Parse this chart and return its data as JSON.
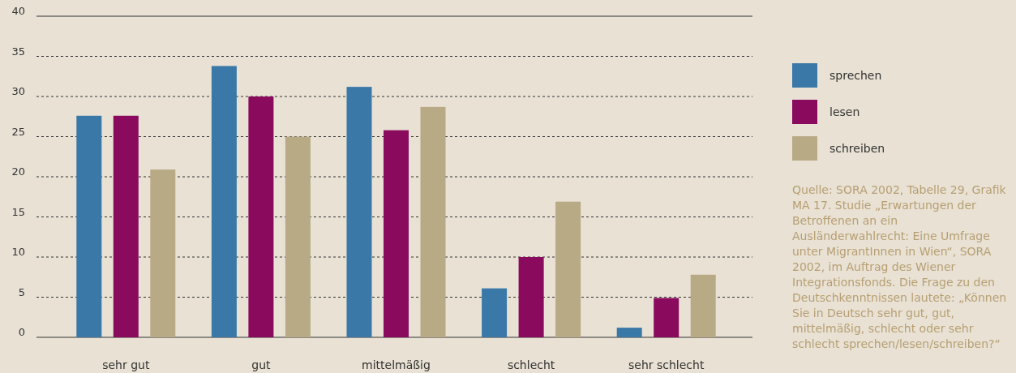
{
  "chart_data": {
    "type": "bar",
    "categories": [
      "sehr gut",
      "gut",
      "mittelmäßig",
      "schlecht",
      "sehr schlecht"
    ],
    "series": [
      {
        "name": "sprechen",
        "color": "#3a78a8",
        "values": [
          27.6,
          33.8,
          31.2,
          6.1,
          1.2
        ]
      },
      {
        "name": "lesen",
        "color": "#8a0a5e",
        "values": [
          27.6,
          30.0,
          25.8,
          10.0,
          4.9
        ]
      },
      {
        "name": "schreiben",
        "color": "#b9aa86",
        "values": [
          20.9,
          25.0,
          28.7,
          16.9,
          7.8
        ]
      }
    ],
    "ylim": [
      0,
      40
    ],
    "yticks": [
      0,
      5,
      10,
      15,
      20,
      25,
      30,
      35,
      40
    ],
    "grid": "y",
    "legend": "right",
    "annotations": [
      "Quelle: SORA 2002, Tabelle 29, Grafik MA 17. Studie „Erwartungen der Betroffenen an ein Ausländerwahlrecht: Eine Umfrage unter MigrantInnen in Wien“, SORA 2002, im Auftrag des Wiener Integrationsfonds. Die Frage zu den Deutschkenntnissen lautete: „Können Sie in Deutsch sehr gut, gut, mittelmäßig, schlecht oder sehr schlecht sprechen/lesen/schreiben?“"
    ]
  }
}
